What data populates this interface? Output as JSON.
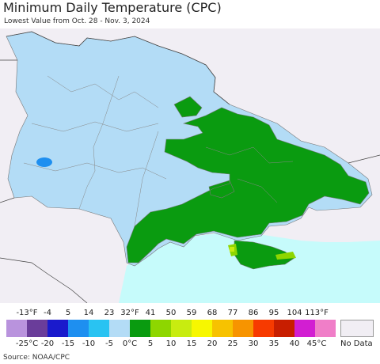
{
  "title": "Minimum Daily Temperature (CPC)",
  "subtitle": "Lowest Value from Oct. 28 - Nov. 3, 2024",
  "source": "Source: NOAA/CPC",
  "legend": {
    "fahrenheit_labels": [
      "-13°F",
      "-4",
      "5",
      "14",
      "23",
      "32°F",
      "41",
      "50",
      "59",
      "68",
      "77",
      "86",
      "95",
      "104",
      "113°F"
    ],
    "celsius_labels": [
      "-25°C",
      "-20",
      "-15",
      "-10",
      "-5",
      "0°C",
      "5",
      "10",
      "15",
      "20",
      "25",
      "30",
      "35",
      "40",
      "45°C"
    ],
    "colors": [
      "#b993dd",
      "#6a3d9a",
      "#1a1acc",
      "#1e8ff0",
      "#29c3f2",
      "#b3dcf6",
      "#0a9b10",
      "#8ed600",
      "#c8ec10",
      "#f7f700",
      "#f7c200",
      "#f79400",
      "#f73a00",
      "#c81e00",
      "#d21ed2",
      "#f07ec8"
    ],
    "no_data_label": "No Data",
    "no_data_color": "#f1eef4"
  },
  "map_colors": {
    "background": "#f1eef4",
    "sea": "#c6fbfb",
    "cold": "#b3dcf6",
    "cool": "#0a9b10",
    "mild": "#8ed600",
    "warm": "#c8ec10",
    "blue_spot": "#1e8ff0"
  }
}
